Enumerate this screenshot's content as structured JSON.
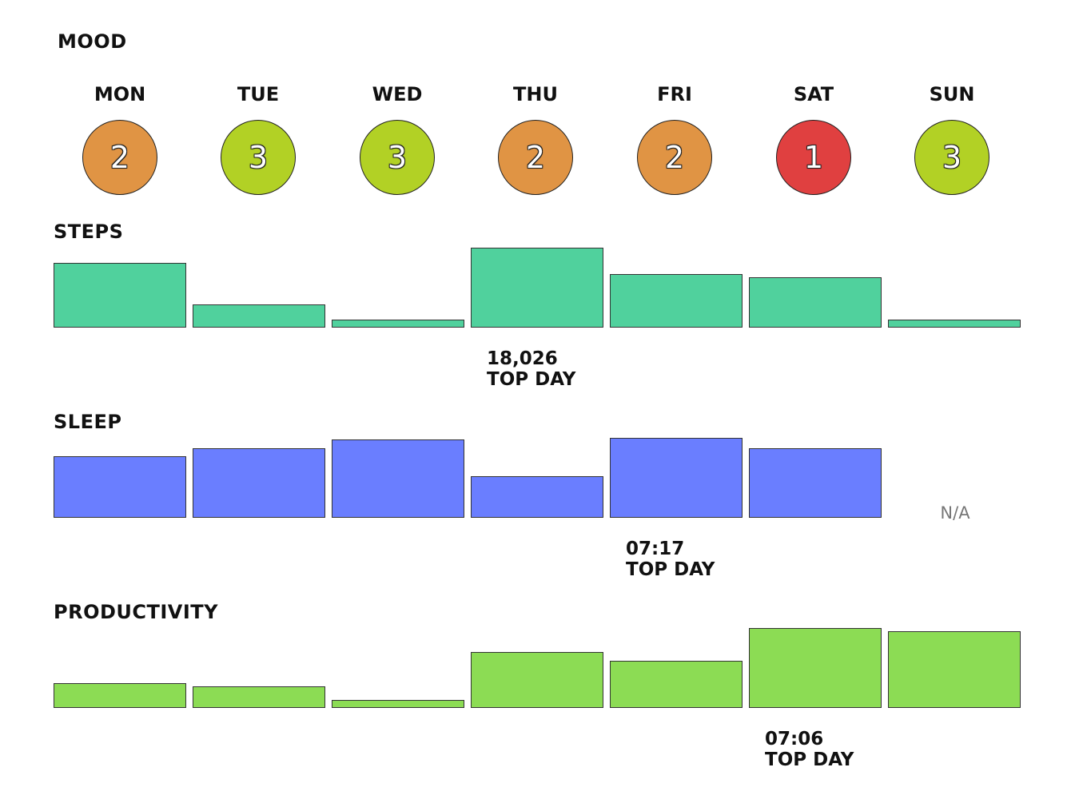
{
  "days": [
    "MON",
    "TUE",
    "WED",
    "THU",
    "FRI",
    "SAT",
    "SUN"
  ],
  "mood": {
    "title": "MOOD",
    "values": [
      2,
      3,
      3,
      2,
      2,
      1,
      3
    ],
    "colors": {
      "1": "#e04040",
      "2": "#e09444",
      "3": "#b2d125"
    }
  },
  "chart_data": [
    {
      "type": "bar",
      "title": "STEPS",
      "categories": [
        "MON",
        "TUE",
        "WED",
        "THU",
        "FRI",
        "SAT",
        "SUN"
      ],
      "values": [
        14600,
        5200,
        1800,
        18026,
        12000,
        11300,
        1800
      ],
      "ylim": [
        0,
        18026
      ],
      "color": "#50d19d",
      "top_day": {
        "index": 3,
        "value_label": "18,026",
        "caption": "TOP DAY"
      },
      "na_label": ""
    },
    {
      "type": "bar",
      "title": "SLEEP",
      "categories": [
        "MON",
        "TUE",
        "WED",
        "THU",
        "FRI",
        "SAT",
        "SUN"
      ],
      "values": [
        5.58,
        6.3,
        7.17,
        3.75,
        7.28,
        6.3,
        null
      ],
      "ylim": [
        0,
        7.28
      ],
      "color": "#6a7eff",
      "top_day": {
        "index": 4,
        "value_label": "07:17",
        "caption": "TOP DAY"
      },
      "na_label": "N/A"
    },
    {
      "type": "bar",
      "title": "PRODUCTIVITY",
      "categories": [
        "MON",
        "TUE",
        "WED",
        "THU",
        "FRI",
        "SAT",
        "SUN"
      ],
      "values": [
        2.2,
        1.9,
        0.7,
        5.0,
        4.2,
        7.1,
        6.8
      ],
      "ylim": [
        0,
        7.1
      ],
      "color": "#8cdc54",
      "top_day": {
        "index": 5,
        "value_label": "07:06",
        "caption": "TOP DAY"
      },
      "na_label": ""
    }
  ]
}
